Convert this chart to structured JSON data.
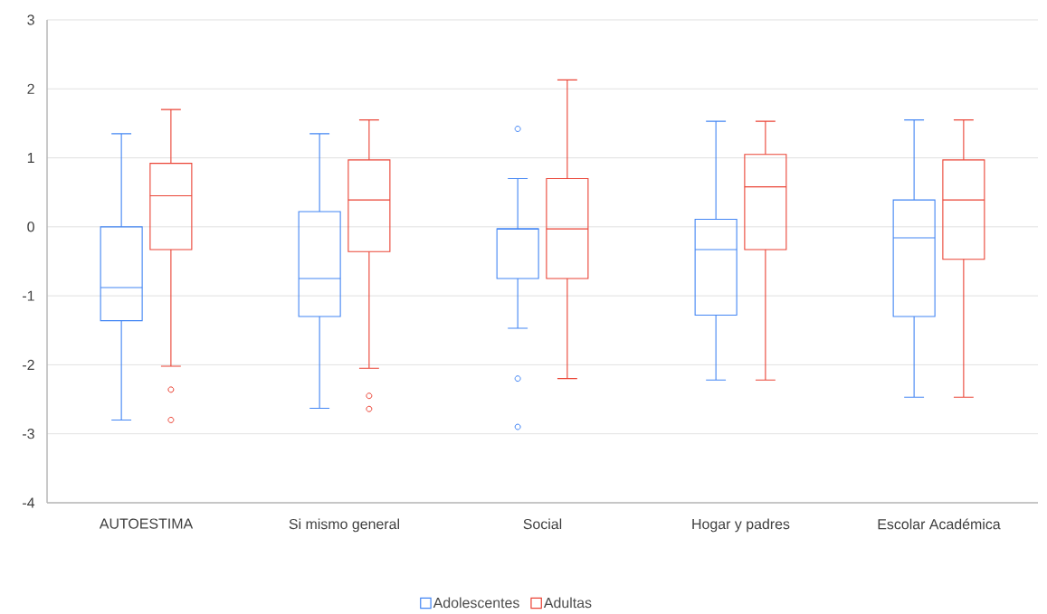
{
  "chart_data": {
    "type": "box",
    "categories": [
      "AUTOESTIMA",
      "Si mismo general",
      "Social",
      "Hogar y padres",
      "Escolar Académica"
    ],
    "series": [
      {
        "name": "Adolescentes",
        "color": "#4285f4",
        "boxes": [
          {
            "low": -2.8,
            "q1": -1.36,
            "median": -0.88,
            "q3": 0.0,
            "high": 1.35
          },
          {
            "low": -2.63,
            "q1": -1.3,
            "median": -0.75,
            "q3": 0.22,
            "high": 1.35
          },
          {
            "low": -1.47,
            "q1": -0.75,
            "median": -0.03,
            "q3": -0.03,
            "high": 0.7,
            "outliers": [
              1.42,
              -2.2,
              -2.9
            ]
          },
          {
            "low": -2.22,
            "q1": -1.28,
            "median": -0.33,
            "q3": 0.11,
            "high": 1.53
          },
          {
            "low": -2.47,
            "q1": -1.3,
            "median": -0.16,
            "q3": 0.39,
            "high": 1.55
          }
        ]
      },
      {
        "name": "Adultas",
        "color": "#ea4335",
        "boxes": [
          {
            "low": -2.02,
            "q1": -0.33,
            "median": 0.45,
            "q3": 0.92,
            "high": 1.7,
            "outliers": [
              -2.36,
              -2.8
            ]
          },
          {
            "low": -2.05,
            "q1": -0.36,
            "median": 0.39,
            "q3": 0.97,
            "high": 1.55,
            "outliers": [
              -2.45,
              -2.64
            ]
          },
          {
            "low": -2.2,
            "q1": -0.75,
            "median": -0.03,
            "q3": 0.7,
            "high": 2.13
          },
          {
            "low": -2.22,
            "q1": -0.33,
            "median": 0.58,
            "q3": 1.05,
            "high": 1.53
          },
          {
            "low": -2.47,
            "q1": -0.47,
            "median": 0.39,
            "q3": 0.97,
            "high": 1.55
          }
        ]
      }
    ],
    "ylim": [
      -4,
      3
    ],
    "yticks": [
      -4,
      -3,
      -2,
      -1,
      0,
      1,
      2,
      3
    ],
    "grid": "y",
    "legend": "bottom"
  }
}
